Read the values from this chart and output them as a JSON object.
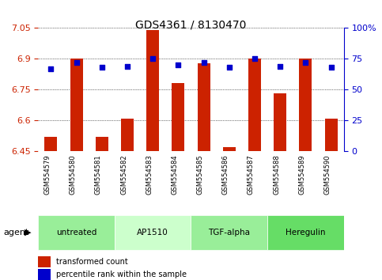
{
  "title": "GDS4361 / 8130470",
  "samples": [
    "GSM554579",
    "GSM554580",
    "GSM554581",
    "GSM554582",
    "GSM554583",
    "GSM554584",
    "GSM554585",
    "GSM554586",
    "GSM554587",
    "GSM554588",
    "GSM554589",
    "GSM554590"
  ],
  "bar_values": [
    6.52,
    6.9,
    6.52,
    6.61,
    7.04,
    6.78,
    6.88,
    6.47,
    6.9,
    6.73,
    6.9,
    6.61
  ],
  "dot_values": [
    67,
    72,
    68,
    69,
    75,
    70,
    72,
    68,
    75,
    69,
    72,
    68
  ],
  "ylim_left": [
    6.45,
    7.05
  ],
  "ylim_right": [
    0,
    100
  ],
  "yticks_left": [
    6.45,
    6.6,
    6.75,
    6.9,
    7.05
  ],
  "yticks_right": [
    0,
    25,
    50,
    75,
    100
  ],
  "ytick_labels_left": [
    "6.45",
    "6.6",
    "6.75",
    "6.9",
    "7.05"
  ],
  "ytick_labels_right": [
    "0",
    "25",
    "50",
    "75",
    "100%"
  ],
  "bar_color": "#cc2200",
  "dot_color": "#0000cc",
  "bar_bottom": 6.45,
  "agents": [
    {
      "label": "untreated",
      "start": 0,
      "end": 3,
      "color": "#99ee99"
    },
    {
      "label": "AP1510",
      "start": 3,
      "end": 6,
      "color": "#ccffcc"
    },
    {
      "label": "TGF-alpha",
      "start": 6,
      "end": 9,
      "color": "#99ee99"
    },
    {
      "label": "Heregulin",
      "start": 9,
      "end": 12,
      "color": "#66dd66"
    }
  ],
  "agent_label": "agent",
  "legend_bar_label": "transformed count",
  "legend_dot_label": "percentile rank within the sample",
  "grid_color": "#000000",
  "bg_color": "#ffffff",
  "tick_area_color": "#cccccc",
  "bar_width": 0.5
}
